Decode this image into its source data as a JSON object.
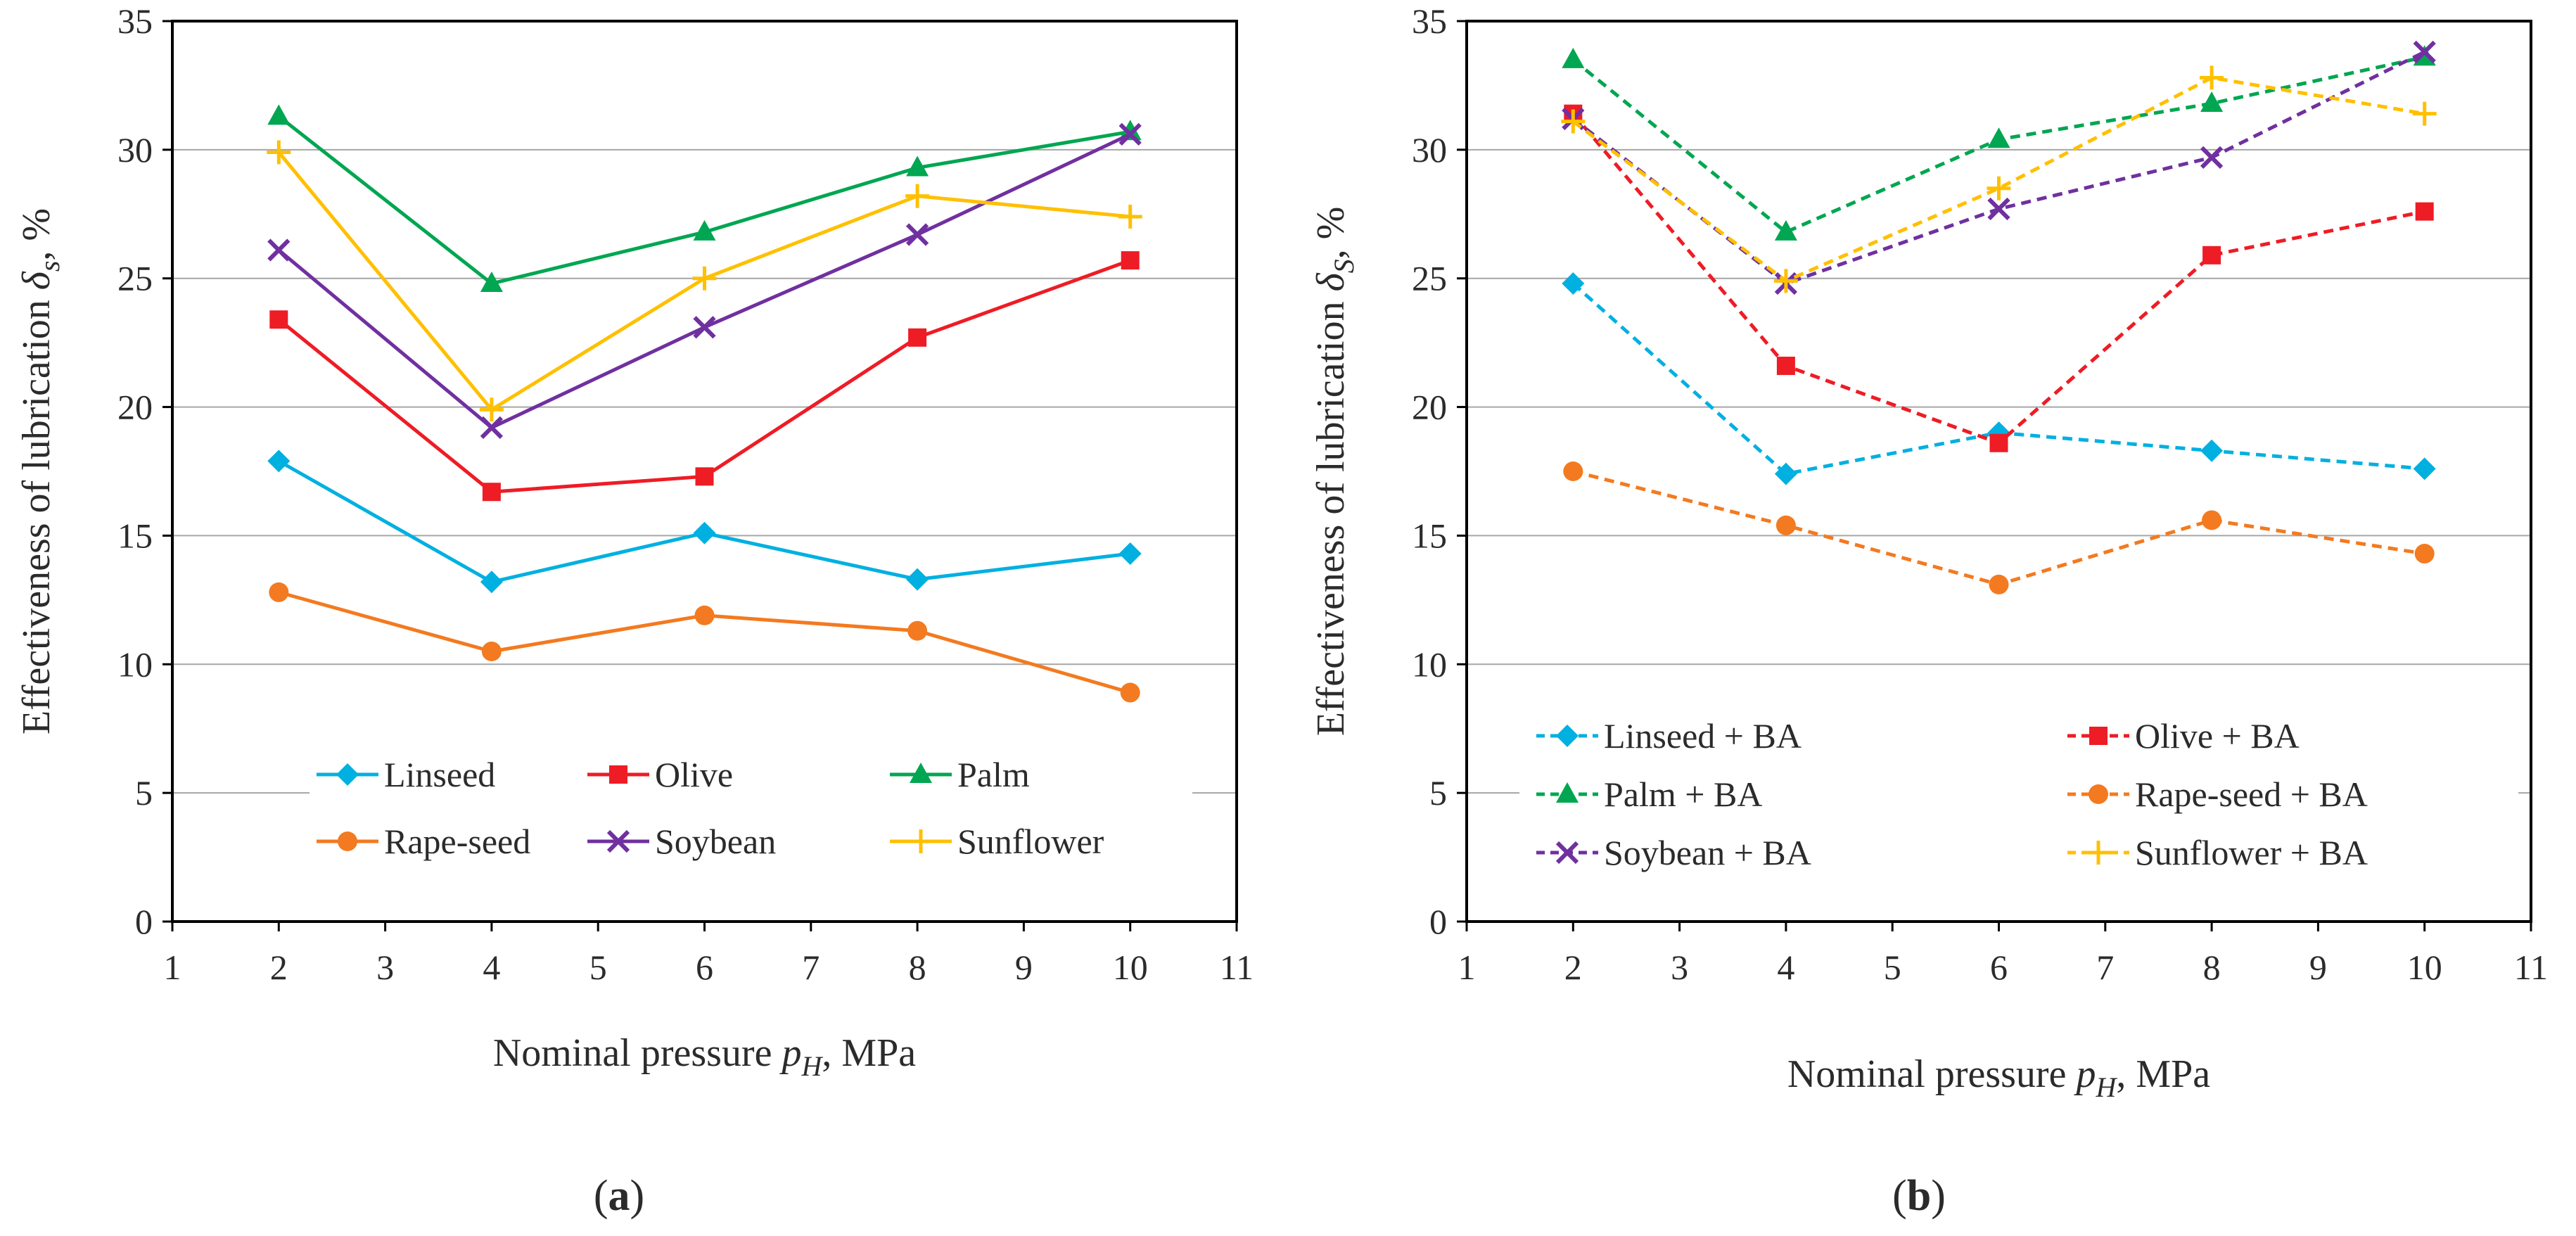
{
  "chart_data": [
    {
      "type": "line",
      "panel": "a",
      "caption": "(a)",
      "xlabel": {
        "pre": "Nominal pressure ",
        "var": "p",
        "sub": "H",
        "post": ", MPa"
      },
      "ylabel": {
        "pre": "Effectiveness of lubrication ",
        "var": "δ",
        "sub": "s",
        "post": ", %"
      },
      "xlim": [
        1,
        11
      ],
      "ylim": [
        0,
        35
      ],
      "xticks": [
        1,
        2,
        3,
        4,
        5,
        6,
        7,
        8,
        9,
        10,
        11
      ],
      "yticks": [
        0,
        5,
        10,
        15,
        20,
        25,
        30,
        35
      ],
      "grid": "horizontal",
      "dashed": false,
      "x": [
        2,
        4,
        6,
        8,
        10
      ],
      "legend_order": [
        0,
        1,
        2,
        3,
        4,
        5
      ],
      "series": [
        {
          "name": "Linseed",
          "color": "#00b0e0",
          "marker": "diamond",
          "values": [
            17.9,
            13.2,
            15.1,
            13.3,
            14.3
          ]
        },
        {
          "name": "Olive",
          "color": "#ee1c25",
          "marker": "square",
          "values": [
            23.4,
            16.7,
            17.3,
            22.7,
            25.7
          ]
        },
        {
          "name": "Palm",
          "color": "#00a651",
          "marker": "triangle",
          "values": [
            31.3,
            24.8,
            26.8,
            29.3,
            30.7
          ]
        },
        {
          "name": "Rape-seed",
          "color": "#f37a20",
          "marker": "circle",
          "values": [
            12.8,
            10.5,
            11.9,
            11.3,
            8.9
          ]
        },
        {
          "name": "Soybean",
          "color": "#7030a0",
          "marker": "x",
          "values": [
            26.1,
            19.2,
            23.1,
            26.7,
            30.6
          ]
        },
        {
          "name": "Sunflower",
          "color": "#ffc000",
          "marker": "plus",
          "values": [
            29.9,
            19.9,
            25.0,
            28.2,
            27.4
          ]
        }
      ]
    },
    {
      "type": "line",
      "panel": "b",
      "caption": "(b)",
      "xlabel": {
        "pre": "Nominal pressure ",
        "var": "p",
        "sub": "H",
        "post": ", MPa"
      },
      "ylabel": {
        "pre": "Effectiveness of lubrication ",
        "var": "δ",
        "sub": "S",
        "post": ", %"
      },
      "xlim": [
        1,
        11
      ],
      "ylim": [
        0,
        35
      ],
      "xticks": [
        1,
        2,
        3,
        4,
        5,
        6,
        7,
        8,
        9,
        10,
        11
      ],
      "yticks": [
        0,
        5,
        10,
        15,
        20,
        25,
        30,
        35
      ],
      "grid": "horizontal",
      "dashed": true,
      "x": [
        2,
        4,
        6,
        8,
        10
      ],
      "legend_order": [
        0,
        1,
        2,
        3,
        4,
        5
      ],
      "series": [
        {
          "name": "Linseed + BA",
          "color": "#00b0e0",
          "marker": "diamond",
          "values": [
            24.8,
            17.4,
            19.0,
            18.3,
            17.6
          ]
        },
        {
          "name": "Olive + BA",
          "color": "#ee1c25",
          "marker": "square",
          "values": [
            31.4,
            21.6,
            18.6,
            25.9,
            27.6
          ]
        },
        {
          "name": "Palm + BA",
          "color": "#00a651",
          "marker": "triangle",
          "values": [
            33.5,
            26.8,
            30.4,
            31.8,
            33.6
          ]
        },
        {
          "name": "Rape-seed + BA",
          "color": "#f37a20",
          "marker": "circle",
          "values": [
            17.5,
            15.4,
            13.1,
            15.6,
            14.3
          ]
        },
        {
          "name": "Soybean + BA",
          "color": "#7030a0",
          "marker": "x",
          "values": [
            31.2,
            24.8,
            27.7,
            29.7,
            33.8
          ]
        },
        {
          "name": "Sunflower + BA",
          "color": "#ffc000",
          "marker": "plus",
          "values": [
            31.1,
            24.9,
            28.5,
            32.8,
            31.4
          ]
        }
      ]
    }
  ]
}
